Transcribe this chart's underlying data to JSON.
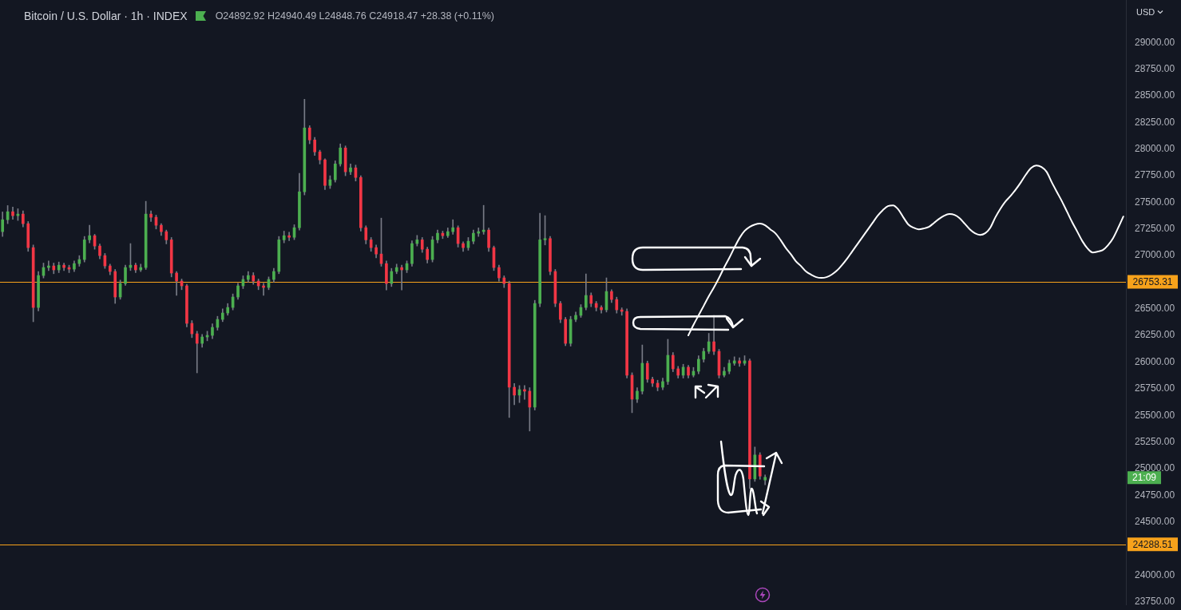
{
  "chart_data": {
    "type": "candlestick",
    "title": "Bitcoin / U.S. Dollar · 1h · INDEX",
    "subtitle": "O24892.92 H24940.49 L24848.76 C24918.47 +28.38 (+0.11%)",
    "ylabel": "USD",
    "categories": [
      null,
      null,
      null,
      null,
      null,
      null,
      null,
      null,
      null,
      null,
      null,
      null,
      null,
      null,
      null,
      null,
      null,
      null,
      null,
      null,
      null,
      null,
      null,
      null,
      null,
      null,
      null,
      null,
      null,
      null,
      null,
      null,
      null,
      null,
      null,
      null,
      null,
      null,
      null,
      null,
      null,
      null,
      null,
      null,
      null,
      null,
      null,
      null,
      null,
      null,
      null,
      null,
      null,
      null,
      null,
      null,
      null,
      null,
      null,
      null,
      null,
      null,
      null,
      null,
      null,
      null,
      null,
      null,
      null,
      null,
      null,
      null,
      null,
      null,
      null,
      null,
      null,
      null,
      null,
      null,
      null,
      null,
      null,
      null,
      null,
      null,
      null,
      null,
      null,
      null,
      null,
      null,
      null,
      null,
      null,
      null,
      null,
      null,
      null,
      null,
      null,
      null,
      null,
      null,
      null,
      null,
      null,
      null,
      null,
      null,
      null,
      null,
      null,
      null,
      null,
      null,
      null,
      null,
      null,
      null,
      null,
      null,
      null,
      null,
      null,
      null,
      null,
      null,
      null,
      null,
      null,
      null,
      null,
      null,
      null,
      null,
      null,
      null,
      null,
      null,
      null,
      null,
      null,
      null,
      null,
      null,
      null,
      null,
      null,
      null,
      null,
      null,
      null,
      null,
      null,
      null,
      null,
      null,
      null,
      null,
      null,
      null,
      null,
      null,
      null,
      null,
      null,
      null,
      null,
      null,
      null,
      null,
      null,
      null,
      null,
      null,
      null,
      null,
      null,
      null,
      null,
      null,
      null,
      null,
      null,
      null,
      null,
      null,
      null,
      null,
      null,
      null,
      null,
      null,
      null,
      null,
      null,
      null,
      null,
      null,
      null,
      null,
      null,
      null,
      null,
      null,
      null,
      null,
      null,
      null,
      null,
      null,
      null,
      null,
      null,
      null,
      null,
      null,
      null,
      null
    ],
    "ohlc": [
      [
        27225,
        27410,
        27180,
        27337
      ],
      [
        27337,
        27470,
        27300,
        27412
      ],
      [
        27412,
        27455,
        27340,
        27375
      ],
      [
        27375,
        27440,
        27330,
        27390
      ],
      [
        27390,
        27420,
        27270,
        27300
      ],
      [
        27300,
        27320,
        27040,
        27075
      ],
      [
        27075,
        27100,
        26379,
        26513
      ],
      [
        26513,
        26850,
        26480,
        26813
      ],
      [
        26813,
        26930,
        26790,
        26888
      ],
      [
        26888,
        26950,
        26860,
        26903
      ],
      [
        26903,
        26930,
        26830,
        26866
      ],
      [
        26866,
        26940,
        26840,
        26910
      ],
      [
        26910,
        26930,
        26860,
        26888
      ],
      [
        26888,
        26910,
        26840,
        26873
      ],
      [
        26873,
        26950,
        26850,
        26925
      ],
      [
        26925,
        27000,
        26900,
        26963
      ],
      [
        26963,
        27180,
        26940,
        27148
      ],
      [
        27148,
        27285,
        27120,
        27187
      ],
      [
        27187,
        27200,
        27060,
        27090
      ],
      [
        27090,
        27110,
        26970,
        27000
      ],
      [
        27000,
        27020,
        26880,
        26903
      ],
      [
        26903,
        26920,
        26820,
        26851
      ],
      [
        26851,
        26870,
        26551,
        26611
      ],
      [
        26611,
        26770,
        26590,
        26738
      ],
      [
        26738,
        26910,
        26720,
        26888
      ],
      [
        26888,
        27113,
        26860,
        26910
      ],
      [
        26910,
        26930,
        26840,
        26866
      ],
      [
        26866,
        26920,
        26850,
        26888
      ],
      [
        26888,
        27510,
        26870,
        27390
      ],
      [
        27390,
        27420,
        27320,
        27360
      ],
      [
        27360,
        27380,
        27250,
        27285
      ],
      [
        27285,
        27300,
        27190,
        27225
      ],
      [
        27225,
        27240,
        27110,
        27148
      ],
      [
        27148,
        27170,
        26800,
        26836
      ],
      [
        26836,
        26850,
        26626,
        26761
      ],
      [
        26761,
        26780,
        26680,
        26716
      ],
      [
        26716,
        26730,
        26330,
        26364
      ],
      [
        26364,
        26390,
        26230,
        26266
      ],
      [
        26266,
        26290,
        25899,
        26176
      ],
      [
        26176,
        26260,
        26140,
        26236
      ],
      [
        26236,
        26290,
        26200,
        26251
      ],
      [
        26251,
        26360,
        26220,
        26326
      ],
      [
        26326,
        26430,
        26300,
        26401
      ],
      [
        26401,
        26500,
        26380,
        26461
      ],
      [
        26461,
        26550,
        26440,
        26513
      ],
      [
        26513,
        26640,
        26490,
        26611
      ],
      [
        26611,
        26740,
        26590,
        26716
      ],
      [
        26716,
        26810,
        26690,
        26776
      ],
      [
        26776,
        26850,
        26750,
        26813
      ],
      [
        26813,
        26840,
        26730,
        26761
      ],
      [
        26761,
        26780,
        26680,
        26716
      ],
      [
        26716,
        26740,
        26626,
        26701
      ],
      [
        26701,
        26800,
        26680,
        26776
      ],
      [
        26776,
        26880,
        26750,
        26851
      ],
      [
        26851,
        27180,
        26830,
        27148
      ],
      [
        27148,
        27230,
        27120,
        27187
      ],
      [
        27187,
        27220,
        27140,
        27172
      ],
      [
        27172,
        27290,
        27150,
        27262
      ],
      [
        27262,
        27772,
        27240,
        27599
      ],
      [
        27599,
        28468,
        27570,
        28199
      ],
      [
        28199,
        28220,
        28050,
        28086
      ],
      [
        28086,
        28110,
        27940,
        27974
      ],
      [
        27974,
        27990,
        27860,
        27899
      ],
      [
        27899,
        27910,
        27620,
        27659
      ],
      [
        27659,
        27750,
        27630,
        27712
      ],
      [
        27712,
        27890,
        27690,
        27861
      ],
      [
        27861,
        28049,
        27840,
        28011
      ],
      [
        28011,
        28030,
        27750,
        27787
      ],
      [
        27787,
        27860,
        27760,
        27824
      ],
      [
        27824,
        27850,
        27700,
        27734
      ],
      [
        27734,
        27750,
        27230,
        27262
      ],
      [
        27262,
        27280,
        27110,
        27148
      ],
      [
        27148,
        27170,
        27040,
        27075
      ],
      [
        27075,
        27100,
        26980,
        27015
      ],
      [
        27015,
        27352,
        26900,
        26925
      ],
      [
        26925,
        26950,
        26678,
        26738
      ],
      [
        26738,
        26880,
        26710,
        26851
      ],
      [
        26851,
        26920,
        26830,
        26888
      ],
      [
        26888,
        26910,
        26678,
        26866
      ],
      [
        26866,
        26950,
        26840,
        26925
      ],
      [
        26925,
        27140,
        26900,
        27113
      ],
      [
        27113,
        27190,
        27090,
        27148
      ],
      [
        27148,
        27170,
        27030,
        27060
      ],
      [
        27060,
        27080,
        26930,
        26963
      ],
      [
        26963,
        27180,
        26940,
        27148
      ],
      [
        27148,
        27240,
        27120,
        27210
      ],
      [
        27210,
        27230,
        27160,
        27187
      ],
      [
        27187,
        27260,
        27170,
        27225
      ],
      [
        27225,
        27337,
        27200,
        27262
      ],
      [
        27262,
        27280,
        27080,
        27113
      ],
      [
        27113,
        27130,
        27040,
        27075
      ],
      [
        27075,
        27170,
        27050,
        27135
      ],
      [
        27135,
        27240,
        27110,
        27210
      ],
      [
        27210,
        27260,
        27180,
        27225
      ],
      [
        27225,
        27472,
        27200,
        27240
      ],
      [
        27240,
        27260,
        27040,
        27075
      ],
      [
        27075,
        27090,
        26860,
        26888
      ],
      [
        26888,
        26910,
        26760,
        26791
      ],
      [
        26791,
        26810,
        26700,
        26738
      ],
      [
        26738,
        26760,
        25480,
        25764
      ],
      [
        25764,
        25800,
        25600,
        25690
      ],
      [
        25690,
        25780,
        25620,
        25742
      ],
      [
        25742,
        25780,
        25650,
        25727
      ],
      [
        25727,
        25760,
        25353,
        25577
      ],
      [
        25577,
        26580,
        25550,
        26551
      ],
      [
        26551,
        27397,
        26520,
        27148
      ],
      [
        27148,
        27375,
        27100,
        27160
      ],
      [
        27160,
        27180,
        26820,
        26851
      ],
      [
        26851,
        26870,
        26520,
        26551
      ],
      [
        26551,
        26570,
        26370,
        26401
      ],
      [
        26401,
        26420,
        26154,
        26176
      ],
      [
        26176,
        26430,
        26150,
        26401
      ],
      [
        26401,
        26470,
        26380,
        26439
      ],
      [
        26439,
        26540,
        26420,
        26513
      ],
      [
        26513,
        26828,
        26490,
        26626
      ],
      [
        26626,
        26650,
        26520,
        26551
      ],
      [
        26551,
        26570,
        26480,
        26513
      ],
      [
        26513,
        26530,
        26460,
        26491
      ],
      [
        26491,
        26791,
        26470,
        26663
      ],
      [
        26663,
        26680,
        26560,
        26588
      ],
      [
        26588,
        26610,
        26460,
        26491
      ],
      [
        26491,
        26510,
        26440,
        26476
      ],
      [
        26476,
        26500,
        25850,
        25877
      ],
      [
        25877,
        25900,
        25525,
        25652
      ],
      [
        25652,
        25760,
        25620,
        25727
      ],
      [
        25727,
        26161,
        25700,
        25989
      ],
      [
        25989,
        26010,
        25810,
        25839
      ],
      [
        25839,
        25860,
        25770,
        25802
      ],
      [
        25802,
        25830,
        25730,
        25764
      ],
      [
        25764,
        25850,
        25740,
        25817
      ],
      [
        25817,
        26214,
        25790,
        26064
      ],
      [
        26064,
        26090,
        25910,
        25937
      ],
      [
        25937,
        25960,
        25850,
        25877
      ],
      [
        25877,
        25980,
        25850,
        25952
      ],
      [
        25952,
        25970,
        25850,
        25877
      ],
      [
        25877,
        25950,
        25860,
        25914
      ],
      [
        25914,
        26060,
        25890,
        26027
      ],
      [
        26027,
        26130,
        26000,
        26101
      ],
      [
        26101,
        26270,
        26080,
        26191
      ],
      [
        26191,
        26439,
        26070,
        26101
      ],
      [
        26101,
        26120,
        25850,
        25877
      ],
      [
        25877,
        25950,
        25860,
        25914
      ],
      [
        25914,
        26020,
        25890,
        25989
      ],
      [
        25989,
        26050,
        25970,
        26012
      ],
      [
        26012,
        26040,
        25960,
        25989
      ],
      [
        25989,
        26060,
        25970,
        26012
      ],
      [
        26012,
        26030,
        24813,
        24903
      ],
      [
        24903,
        25203,
        24880,
        25128
      ],
      [
        25128,
        25150,
        24900,
        24930
      ],
      [
        24892.92,
        24940.49,
        24848.76,
        24918.47
      ],
      null,
      null,
      null,
      null,
      null,
      null,
      null,
      null,
      null,
      null,
      null,
      null,
      null,
      null,
      null,
      null,
      null,
      null,
      null,
      null,
      null,
      null,
      null,
      null,
      null,
      null,
      null,
      null,
      null,
      null,
      null,
      null,
      null,
      null,
      null,
      null,
      null,
      null,
      null,
      null,
      null,
      null,
      null,
      null,
      null,
      null,
      null,
      null,
      null,
      null,
      null,
      null,
      null,
      null,
      null,
      null,
      null,
      null,
      null,
      null,
      null,
      null,
      null,
      null,
      null,
      null,
      null,
      null,
      null,
      null
    ],
    "colors": [
      "#4caf50",
      "#4caf50",
      "#f23645",
      "#4caf50",
      "#f23645",
      "#f23645",
      "#f23645",
      "#4caf50",
      "#4caf50",
      "#4caf50",
      "#f23645",
      "#4caf50",
      "#f23645",
      "#f23645",
      "#4caf50",
      "#4caf50",
      "#4caf50",
      "#4caf50",
      "#f23645",
      "#f23645",
      "#f23645",
      "#f23645",
      "#f23645",
      "#4caf50",
      "#4caf50",
      "#4caf50",
      "#f23645",
      "#4caf50",
      "#4caf50",
      "#f23645",
      "#f23645",
      "#f23645",
      "#f23645",
      "#f23645",
      "#f23645",
      "#f23645",
      "#f23645",
      "#f23645",
      "#f23645",
      "#4caf50",
      "#4caf50",
      "#4caf50",
      "#4caf50",
      "#4caf50",
      "#4caf50",
      "#4caf50",
      "#4caf50",
      "#4caf50",
      "#4caf50",
      "#f23645",
      "#f23645",
      "#f23645",
      "#4caf50",
      "#4caf50",
      "#4caf50",
      "#4caf50",
      "#f23645",
      "#4caf50",
      "#4caf50",
      "#4caf50",
      "#f23645",
      "#f23645",
      "#f23645",
      "#f23645",
      "#4caf50",
      "#4caf50",
      "#4caf50",
      "#f23645",
      "#4caf50",
      "#f23645",
      "#f23645",
      "#f23645",
      "#f23645",
      "#f23645",
      "#f23645",
      "#f23645",
      "#4caf50",
      "#4caf50",
      "#f23645",
      "#4caf50",
      "#4caf50",
      "#4caf50",
      "#f23645",
      "#f23645",
      "#4caf50",
      "#4caf50",
      "#f23645",
      "#4caf50",
      "#4caf50",
      "#f23645",
      "#f23645",
      "#4caf50",
      "#4caf50",
      "#4caf50",
      "#4caf50",
      "#f23645",
      "#f23645",
      "#f23645",
      "#f23645",
      "#f23645",
      "#f23645",
      "#4caf50",
      "#f23645",
      "#f23645",
      "#4caf50",
      "#4caf50",
      "#4caf50",
      "#f23645",
      "#f23645",
      "#f23645",
      "#f23645",
      "#4caf50",
      "#4caf50",
      "#4caf50",
      "#4caf50",
      "#f23645",
      "#f23645",
      "#f23645",
      "#4caf50",
      "#f23645",
      "#f23645",
      "#f23645",
      "#f23645",
      "#f23645",
      "#4caf50",
      "#4caf50",
      "#f23645",
      "#f23645",
      "#f23645",
      "#4caf50",
      "#4caf50",
      "#f23645",
      "#f23645",
      "#4caf50",
      "#f23645",
      "#4caf50",
      "#4caf50",
      "#4caf50",
      "#4caf50",
      "#f23645",
      "#f23645",
      "#4caf50",
      "#4caf50",
      "#4caf50",
      "#f23645",
      "#4caf50",
      "#f23645",
      "#4caf50",
      "#f23645",
      "#4caf50",
      null,
      null,
      null,
      null,
      null,
      null,
      null,
      null,
      null,
      null,
      null,
      null,
      null,
      null,
      null,
      null,
      null,
      null,
      null,
      null,
      null,
      null,
      null,
      null,
      null,
      null,
      null,
      null,
      null,
      null,
      null,
      null,
      null,
      null,
      null,
      null,
      null,
      null,
      null,
      null,
      null,
      null,
      null,
      null,
      null,
      null,
      null,
      null,
      null,
      null,
      null,
      null,
      null,
      null,
      null,
      null,
      null,
      null,
      null,
      null,
      null,
      null,
      null,
      null,
      null,
      null,
      null,
      null,
      null,
      null
    ],
    "series": [
      {
        "type": "line",
        "color": "#ffffff",
        "values": [
          null,
          null,
          null,
          null,
          null,
          null,
          null,
          null,
          null,
          null,
          null,
          null,
          null,
          null,
          null,
          null,
          null,
          null,
          null,
          null,
          null,
          null,
          null,
          null,
          null,
          null,
          null,
          null,
          null,
          null,
          null,
          null,
          null,
          null,
          null,
          null,
          null,
          null,
          null,
          null,
          null,
          null,
          null,
          null,
          null,
          null,
          null,
          null,
          null,
          null,
          null,
          null,
          null,
          null,
          null,
          null,
          null,
          null,
          null,
          null,
          null,
          null,
          null,
          null,
          null,
          null,
          null,
          null,
          null,
          null,
          null,
          null,
          null,
          null,
          null,
          null,
          null,
          null,
          null,
          null,
          null,
          null,
          null,
          null,
          null,
          null,
          null,
          null,
          null,
          null,
          null,
          null,
          null,
          null,
          null,
          null,
          null,
          null,
          null,
          null,
          null,
          null,
          null,
          null,
          null,
          null,
          null,
          null,
          null,
          null,
          null,
          null,
          null,
          null,
          null,
          null,
          null,
          null,
          null,
          null,
          null,
          null,
          null,
          null,
          null,
          null,
          null,
          null,
          null,
          null,
          null,
          null,
          null,
          null,
          26251,
          26349,
          26439,
          26528,
          26618,
          26701,
          26791,
          26888,
          26978,
          27075,
          27165,
          27232,
          27270,
          27292,
          27300,
          27285,
          27247,
          27210,
          27148,
          27075,
          27015,
          26948,
          26903,
          26851,
          26821,
          26798,
          26791,
          26798,
          26821,
          26858,
          26910,
          26970,
          27038,
          27105,
          27172,
          27240,
          27307,
          27375,
          27427,
          27465,
          27472,
          27435,
          27360,
          27292,
          27262,
          27247,
          27255,
          27270,
          27307,
          27345,
          27375,
          27390,
          27382,
          27352,
          27300,
          27247,
          27210,
          27195,
          27210,
          27262,
          27360,
          27442,
          27510,
          27562,
          27622,
          27690,
          27764,
          27824,
          27847,
          27832,
          27787,
          27690,
          27599,
          27510,
          27412,
          27314,
          27225,
          27135,
          27068,
          27030,
          27038,
          27053,
          27098,
          27165,
          27262,
          27367
        ]
      }
    ],
    "ylim": [
      23725,
      29400
    ],
    "yticks": [
      {
        "value": 23750,
        "label": "23750.00"
      },
      {
        "value": 24000,
        "label": "24000.00"
      },
      {
        "value": 24500,
        "label": "24500.00"
      },
      {
        "value": 24750,
        "label": "24750.00"
      },
      {
        "value": 25000,
        "label": "25000.00"
      },
      {
        "value": 25250,
        "label": "25250.00"
      },
      {
        "value": 25500,
        "label": "25500.00"
      },
      {
        "value": 25750,
        "label": "25750.00"
      },
      {
        "value": 26000,
        "label": "26000.00"
      },
      {
        "value": 26250,
        "label": "26250.00"
      },
      {
        "value": 26500,
        "label": "26500.00"
      },
      {
        "value": 27000,
        "label": "27000.00"
      },
      {
        "value": 27250,
        "label": "27250.00"
      },
      {
        "value": 27500,
        "label": "27500.00"
      },
      {
        "value": 27750,
        "label": "27750.00"
      },
      {
        "value": 28000,
        "label": "28000.00"
      },
      {
        "value": 28250,
        "label": "28250.00"
      },
      {
        "value": 28500,
        "label": "28500.00"
      },
      {
        "value": 28750,
        "label": "28750.00"
      },
      {
        "value": 29000,
        "label": "29000.00"
      }
    ],
    "ref_lines": [
      {
        "axis": "y",
        "value": 26753.31,
        "label": "26753.31",
        "color": "#f7a21b"
      },
      {
        "axis": "y",
        "value": 24288.51,
        "label": "24288.51",
        "color": "#f7a21b"
      }
    ],
    "annotations": [
      {
        "text": "21:09",
        "y": 24918.47
      }
    ],
    "tick_labels": "y"
  }
}
